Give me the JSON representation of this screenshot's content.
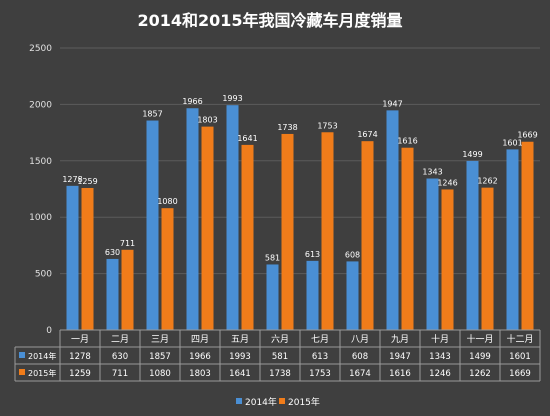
{
  "chart_data": {
    "type": "bar",
    "title": "2014和2015年我国冷藏车月度销量",
    "xlabel": "",
    "ylabel": "",
    "ylim": [
      0,
      2500
    ],
    "yticks": [
      0,
      500,
      1000,
      1500,
      2000,
      2500
    ],
    "grid": true,
    "legend_position": "bottom",
    "categories": [
      "一月",
      "二月",
      "三月",
      "四月",
      "五月",
      "六月",
      "七月",
      "八月",
      "九月",
      "十月",
      "十一月",
      "十二月"
    ],
    "series": [
      {
        "name": "2014年",
        "color": "#4a8fd4",
        "values": [
          1278,
          630,
          1857,
          1966,
          1993,
          581,
          613,
          608,
          1947,
          1343,
          1499,
          1601
        ]
      },
      {
        "name": "2015年",
        "color": "#f07c1a",
        "values": [
          1259,
          711,
          1080,
          1803,
          1641,
          1738,
          1753,
          1674,
          1616,
          1246,
          1262,
          1669
        ]
      }
    ],
    "data_table": true
  }
}
